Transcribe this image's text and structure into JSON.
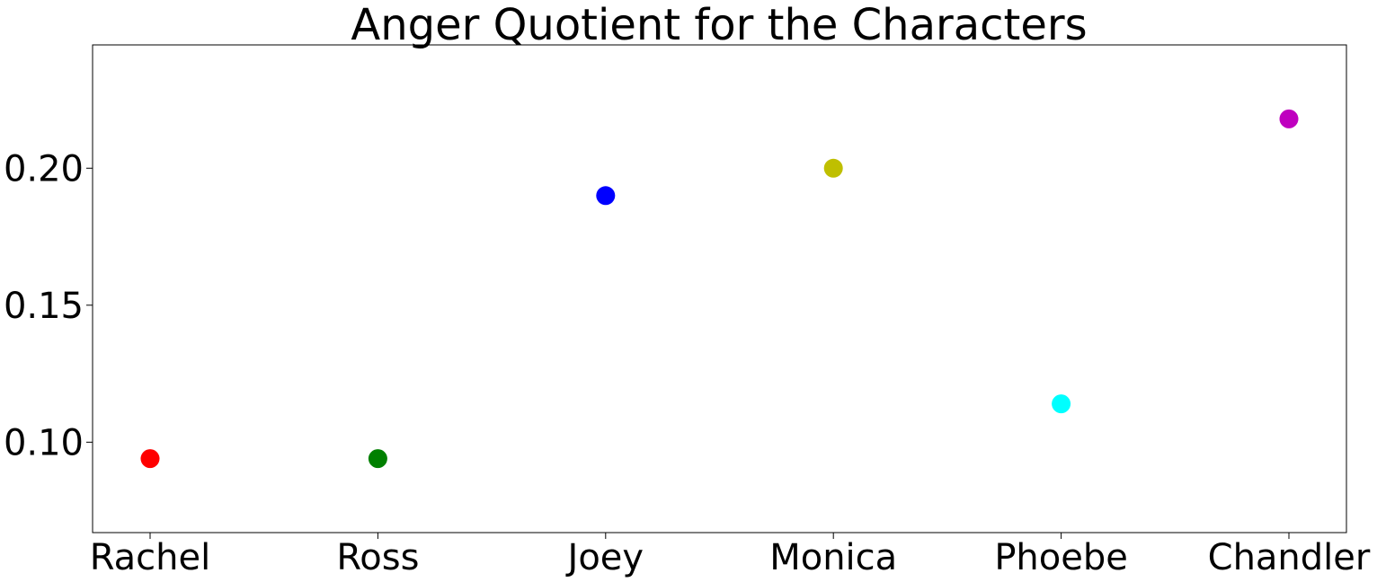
{
  "chart_data": {
    "type": "scatter",
    "title": "Anger Quotient for the Characters",
    "xlabel": "",
    "ylabel": "",
    "categories": [
      "Rachel",
      "Ross",
      "Joey",
      "Monica",
      "Phoebe",
      "Chandler"
    ],
    "values": [
      0.094,
      0.094,
      0.19,
      0.2,
      0.114,
      0.218
    ],
    "colors": [
      "#ff0000",
      "#008000",
      "#0000ff",
      "#bfbf00",
      "#00ffff",
      "#bf00bf"
    ],
    "ylim": [
      0.067,
      0.245
    ],
    "yticks": [
      0.1,
      0.15,
      0.2
    ],
    "ytick_labels": [
      "0.10",
      "0.15",
      "0.20"
    ],
    "grid": false,
    "legend": "none"
  }
}
